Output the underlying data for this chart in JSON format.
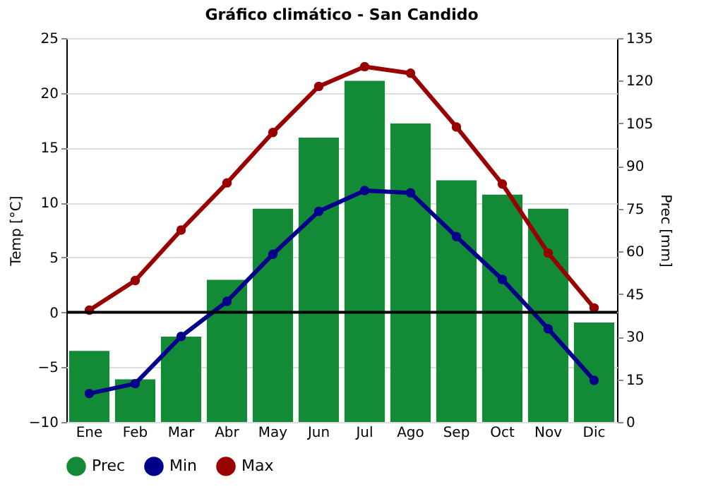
{
  "chart_data": {
    "type": "bar",
    "title": "Gráfico climático - San Candido",
    "ylabel": "Temp [°C]",
    "y2label": "Prec [mm]",
    "categories": [
      "Ene",
      "Feb",
      "Mar",
      "Abr",
      "May",
      "Jun",
      "Jul",
      "Ago",
      "Sep",
      "Oct",
      "Nov",
      "Dic"
    ],
    "series": [
      {
        "name": "Prec",
        "axis": "y2",
        "color": "#138a36",
        "values": [
          25,
          15,
          30,
          50,
          75,
          100,
          120,
          105,
          85,
          80,
          75,
          35
        ]
      },
      {
        "name": "Min",
        "type": "line",
        "color": "#00008b",
        "values": [
          -7.4,
          -6.5,
          -2.2,
          1.0,
          5.3,
          9.2,
          11.1,
          10.9,
          6.9,
          3.0,
          -1.5,
          -6.2
        ]
      },
      {
        "name": "Max",
        "type": "line",
        "color": "#990000",
        "values": [
          0.2,
          2.9,
          7.5,
          11.8,
          16.4,
          20.6,
          22.4,
          21.8,
          16.9,
          11.7,
          5.4,
          0.4
        ]
      }
    ],
    "ylim": [
      -10,
      25
    ],
    "yticks": [
      -10,
      -5,
      0,
      5,
      10,
      15,
      20,
      25
    ],
    "y2lim": [
      0,
      135
    ],
    "y2ticks": [
      0,
      15,
      30,
      45,
      60,
      75,
      90,
      105,
      120,
      135
    ],
    "ref_lines": [
      {
        "axis": "y",
        "value": 0,
        "color": "#000000"
      }
    ],
    "grid": "y",
    "legend": "bottom",
    "marker": "circle",
    "line_style": "solid"
  }
}
